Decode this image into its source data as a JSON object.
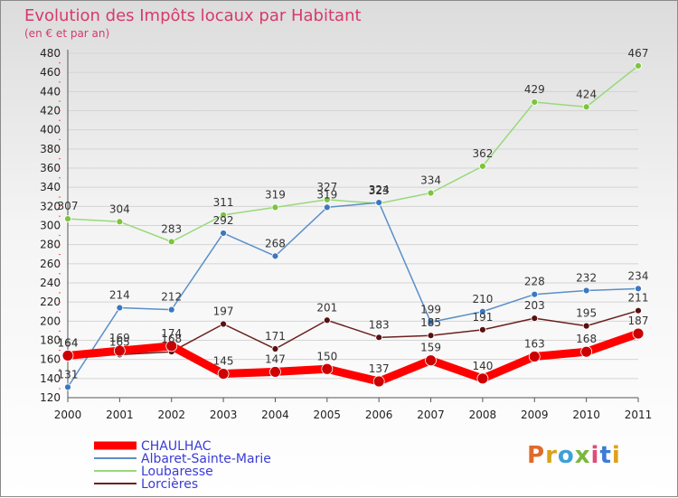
{
  "chart_data": {
    "type": "line",
    "title": "Evolution des Impôts locaux par Habitant",
    "subtitle": "(en € et par an)",
    "categories": [
      "2000",
      "2001",
      "2002",
      "2003",
      "2004",
      "2005",
      "2006",
      "2007",
      "2008",
      "2009",
      "2010",
      "2011"
    ],
    "ylim": [
      120,
      480
    ],
    "yticks": [
      120,
      140,
      160,
      180,
      200,
      220,
      240,
      260,
      280,
      300,
      320,
      340,
      360,
      380,
      400,
      420,
      440,
      460,
      480
    ],
    "grid": "horizontal",
    "legend_position": "bottom-left",
    "series": [
      {
        "name": "CHAULHAC",
        "color": "#ff0000",
        "values": [
          164,
          169,
          174,
          145,
          147,
          150,
          137,
          159,
          140,
          163,
          168,
          187
        ]
      },
      {
        "name": "Albaret-Sainte-Marie",
        "color": "#5a8fc8",
        "values": [
          131,
          214,
          212,
          292,
          268,
          319,
          324,
          199,
          210,
          228,
          232,
          234
        ]
      },
      {
        "name": "Loubaresse",
        "color": "#99d97a",
        "values": [
          307,
          304,
          283,
          311,
          319,
          327,
          323,
          334,
          362,
          429,
          424,
          467
        ]
      },
      {
        "name": "Lorcières",
        "color": "#6b1f1f",
        "values": [
          164,
          165,
          168,
          197,
          171,
          201,
          183,
          185,
          191,
          203,
          195,
          211
        ]
      }
    ]
  },
  "logo": {
    "text": "Proxiti"
  }
}
